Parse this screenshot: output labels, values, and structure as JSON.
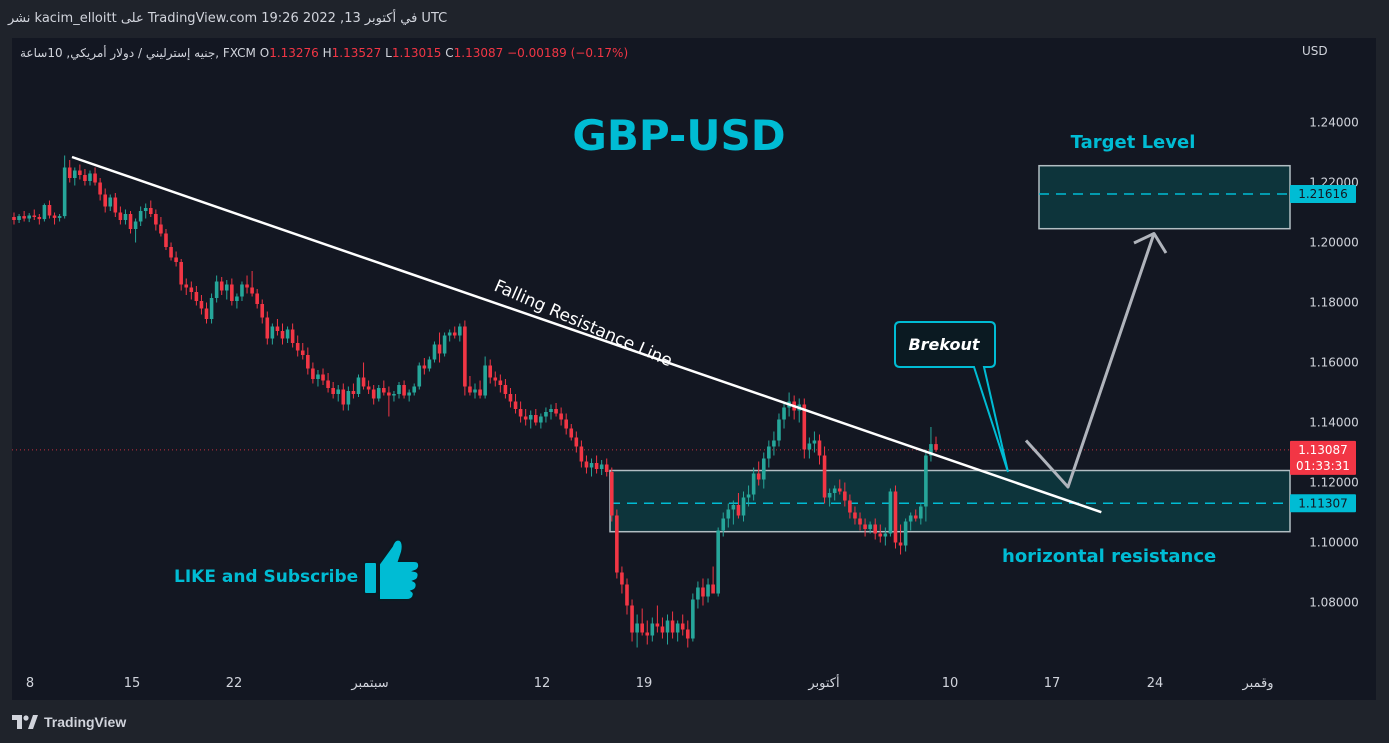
{
  "header": {
    "publish_text": "نشر kacim_elloitt على TradingView.com 19:26 2022 ,13 في أكتوبر UTC"
  },
  "legend": {
    "symbol": "جنيه إسترليني / دولار أمريكي, 10ساعة, FXCM",
    "open_label": "O",
    "open": "1.13276",
    "high_label": "H",
    "high": "1.13527",
    "low_label": "L",
    "low": "1.13015",
    "close_label": "C",
    "close": "1.13087",
    "change": "−0.00189 (−0.17%)"
  },
  "currency_label": "USD",
  "footer": {
    "brand": "TradingView"
  },
  "colors": {
    "bull": "#26a69a",
    "bear": "#f23645",
    "background": "#131722",
    "accent": "#00bcd4",
    "zone_fill": "#0d3a40",
    "zone_stroke": "#b2bec3"
  },
  "chart_data": {
    "type": "candlestick",
    "title": "GBP-USD",
    "y_range": [
      1.06,
      1.26
    ],
    "y_ticks": [
      "1.08000",
      "1.10000",
      "1.12000",
      "1.14000",
      "1.16000",
      "1.18000",
      "1.20000",
      "1.22000",
      "1.24000"
    ],
    "x_ticks": [
      "8",
      "15",
      "22",
      "سبتمبر",
      "12",
      "19",
      "أكتوبر",
      "10",
      "17",
      "24",
      "وقمبر"
    ],
    "price_badges": {
      "target": "1.21616",
      "last": "1.13087",
      "countdown": "01:33:31",
      "support": "1.11307"
    },
    "annotations": {
      "trendline_label": "Falling Resistance Line",
      "breakout_label": "Brekout",
      "target_label": "Target Level",
      "zone_label": "horizontal resistance",
      "cta": "LIKE and Subscribe",
      "cta_icon": "thumbs-up-icon"
    },
    "levels": {
      "target_zone": [
        1.2046,
        1.2256
      ],
      "target_line": 1.21616,
      "support_zone": [
        1.1036,
        1.124
      ],
      "support_line": 1.11307,
      "last_price": 1.13087
    },
    "trendline": {
      "start": [
        0,
        1.2285
      ],
      "end": [
        202,
        1.1101
      ]
    },
    "projection": [
      [
        179,
        1.134
      ],
      [
        188,
        1.1185
      ],
      [
        200,
        1.203
      ]
    ],
    "candles": [
      [
        1.2085,
        1.21,
        1.206,
        1.2075
      ],
      [
        1.2075,
        1.2095,
        1.2065,
        1.2088
      ],
      [
        1.2088,
        1.2105,
        1.207,
        1.208
      ],
      [
        1.208,
        1.2098,
        1.2068,
        1.209
      ],
      [
        1.209,
        1.211,
        1.2075,
        1.2085
      ],
      [
        1.2085,
        1.2095,
        1.206,
        1.2078
      ],
      [
        1.2078,
        1.213,
        1.207,
        1.2125
      ],
      [
        1.2125,
        1.214,
        1.208,
        1.209
      ],
      [
        1.209,
        1.21,
        1.206,
        1.2082
      ],
      [
        1.2082,
        1.2095,
        1.207,
        1.2088
      ],
      [
        1.2088,
        1.229,
        1.208,
        1.225
      ],
      [
        1.225,
        1.2275,
        1.22,
        1.2215
      ],
      [
        1.2215,
        1.225,
        1.219,
        1.224
      ],
      [
        1.224,
        1.226,
        1.221,
        1.2225
      ],
      [
        1.2225,
        1.2245,
        1.219,
        1.2205
      ],
      [
        1.2205,
        1.224,
        1.219,
        1.223
      ],
      [
        1.223,
        1.225,
        1.219,
        1.22
      ],
      [
        1.22,
        1.2215,
        1.214,
        1.216
      ],
      [
        1.216,
        1.218,
        1.21,
        1.212
      ],
      [
        1.212,
        1.216,
        1.2105,
        1.215
      ],
      [
        1.215,
        1.2165,
        1.2085,
        1.21
      ],
      [
        1.21,
        1.212,
        1.206,
        1.2075
      ],
      [
        1.2075,
        1.211,
        1.206,
        1.2095
      ],
      [
        1.2095,
        1.2105,
        1.203,
        1.2045
      ],
      [
        1.2045,
        1.208,
        1.2,
        1.207
      ],
      [
        1.207,
        1.212,
        1.2055,
        1.2105
      ],
      [
        1.2105,
        1.213,
        1.208,
        1.2115
      ],
      [
        1.2115,
        1.214,
        1.2085,
        1.2095
      ],
      [
        1.2095,
        1.211,
        1.204,
        1.206
      ],
      [
        1.206,
        1.2085,
        1.202,
        1.203
      ],
      [
        1.203,
        1.2045,
        1.1975,
        1.1985
      ],
      [
        1.1985,
        1.2,
        1.194,
        1.195
      ],
      [
        1.195,
        1.197,
        1.192,
        1.1935
      ],
      [
        1.1935,
        1.1945,
        1.184,
        1.186
      ],
      [
        1.186,
        1.188,
        1.1825,
        1.185
      ],
      [
        1.185,
        1.187,
        1.181,
        1.1835
      ],
      [
        1.1835,
        1.1855,
        1.179,
        1.1805
      ],
      [
        1.1805,
        1.1825,
        1.176,
        1.178
      ],
      [
        1.178,
        1.18,
        1.173,
        1.1745
      ],
      [
        1.1745,
        1.183,
        1.173,
        1.1815
      ],
      [
        1.1815,
        1.189,
        1.18,
        1.187
      ],
      [
        1.187,
        1.1885,
        1.1825,
        1.184
      ],
      [
        1.184,
        1.1875,
        1.181,
        1.186
      ],
      [
        1.186,
        1.188,
        1.179,
        1.1805
      ],
      [
        1.1805,
        1.183,
        1.178,
        1.182
      ],
      [
        1.182,
        1.187,
        1.1805,
        1.186
      ],
      [
        1.186,
        1.189,
        1.183,
        1.185
      ],
      [
        1.185,
        1.1905,
        1.182,
        1.183
      ],
      [
        1.183,
        1.1845,
        1.178,
        1.1795
      ],
      [
        1.1795,
        1.181,
        1.173,
        1.175
      ],
      [
        1.175,
        1.177,
        1.166,
        1.168
      ],
      [
        1.168,
        1.173,
        1.166,
        1.172
      ],
      [
        1.172,
        1.1745,
        1.169,
        1.1705
      ],
      [
        1.1705,
        1.173,
        1.166,
        1.168
      ],
      [
        1.168,
        1.172,
        1.1665,
        1.171
      ],
      [
        1.171,
        1.173,
        1.165,
        1.1665
      ],
      [
        1.1665,
        1.169,
        1.162,
        1.164
      ],
      [
        1.164,
        1.1665,
        1.161,
        1.1625
      ],
      [
        1.1625,
        1.165,
        1.156,
        1.158
      ],
      [
        1.158,
        1.16,
        1.153,
        1.1545
      ],
      [
        1.1545,
        1.1575,
        1.152,
        1.156
      ],
      [
        1.156,
        1.158,
        1.1525,
        1.154
      ],
      [
        1.154,
        1.1565,
        1.15,
        1.1515
      ],
      [
        1.1515,
        1.1535,
        1.148,
        1.1495
      ],
      [
        1.1495,
        1.1525,
        1.147,
        1.151
      ],
      [
        1.151,
        1.153,
        1.144,
        1.146
      ],
      [
        1.146,
        1.152,
        1.144,
        1.1505
      ],
      [
        1.1505,
        1.153,
        1.148,
        1.1495
      ],
      [
        1.1495,
        1.156,
        1.1485,
        1.155
      ],
      [
        1.155,
        1.16,
        1.151,
        1.152
      ],
      [
        1.152,
        1.154,
        1.1495,
        1.151
      ],
      [
        1.151,
        1.1525,
        1.146,
        1.148
      ],
      [
        1.148,
        1.1525,
        1.147,
        1.1515
      ],
      [
        1.1515,
        1.154,
        1.149,
        1.15
      ],
      [
        1.15,
        1.152,
        1.142,
        1.149
      ],
      [
        1.149,
        1.1505,
        1.147,
        1.1495
      ],
      [
        1.1495,
        1.1535,
        1.148,
        1.1525
      ],
      [
        1.1525,
        1.154,
        1.148,
        1.149
      ],
      [
        1.149,
        1.151,
        1.147,
        1.15
      ],
      [
        1.15,
        1.153,
        1.149,
        1.152
      ],
      [
        1.152,
        1.16,
        1.151,
        1.159
      ],
      [
        1.159,
        1.1615,
        1.156,
        1.158
      ],
      [
        1.158,
        1.162,
        1.157,
        1.161
      ],
      [
        1.161,
        1.167,
        1.16,
        1.166
      ],
      [
        1.166,
        1.17,
        1.16,
        1.163
      ],
      [
        1.163,
        1.17,
        1.162,
        1.169
      ],
      [
        1.169,
        1.171,
        1.167,
        1.17
      ],
      [
        1.17,
        1.172,
        1.168,
        1.169
      ],
      [
        1.169,
        1.173,
        1.167,
        1.172
      ],
      [
        1.172,
        1.174,
        1.149,
        1.152
      ],
      [
        1.152,
        1.1555,
        1.149,
        1.15
      ],
      [
        1.15,
        1.153,
        1.148,
        1.151
      ],
      [
        1.151,
        1.154,
        1.148,
        1.149
      ],
      [
        1.149,
        1.162,
        1.148,
        1.159
      ],
      [
        1.159,
        1.161,
        1.153,
        1.155
      ],
      [
        1.155,
        1.157,
        1.152,
        1.154
      ],
      [
        1.154,
        1.156,
        1.15,
        1.1525
      ],
      [
        1.1525,
        1.1545,
        1.148,
        1.1495
      ],
      [
        1.1495,
        1.1515,
        1.145,
        1.147
      ],
      [
        1.147,
        1.1495,
        1.143,
        1.1445
      ],
      [
        1.1445,
        1.147,
        1.14,
        1.142
      ],
      [
        1.142,
        1.1445,
        1.139,
        1.141
      ],
      [
        1.141,
        1.144,
        1.138,
        1.1425
      ],
      [
        1.1425,
        1.1445,
        1.139,
        1.14
      ],
      [
        1.14,
        1.143,
        1.138,
        1.142
      ],
      [
        1.142,
        1.145,
        1.14,
        1.1435
      ],
      [
        1.1435,
        1.146,
        1.141,
        1.1445
      ],
      [
        1.1445,
        1.1465,
        1.142,
        1.143
      ],
      [
        1.143,
        1.145,
        1.139,
        1.141
      ],
      [
        1.141,
        1.143,
        1.136,
        1.138
      ],
      [
        1.138,
        1.1395,
        1.134,
        1.135
      ],
      [
        1.135,
        1.137,
        1.13,
        1.132
      ],
      [
        1.132,
        1.134,
        1.125,
        1.127
      ],
      [
        1.127,
        1.129,
        1.123,
        1.125
      ],
      [
        1.125,
        1.128,
        1.122,
        1.1265
      ],
      [
        1.1265,
        1.129,
        1.123,
        1.1245
      ],
      [
        1.1245,
        1.1275,
        1.1225,
        1.126
      ],
      [
        1.126,
        1.128,
        1.122,
        1.1235
      ],
      [
        1.1235,
        1.125,
        1.107,
        1.109
      ],
      [
        1.109,
        1.111,
        1.088,
        1.09
      ],
      [
        1.09,
        1.092,
        1.083,
        1.086
      ],
      [
        1.086,
        1.088,
        1.076,
        1.079
      ],
      [
        1.079,
        1.081,
        1.067,
        1.07
      ],
      [
        1.07,
        1.076,
        1.065,
        1.073
      ],
      [
        1.073,
        1.078,
        1.069,
        1.07
      ],
      [
        1.07,
        1.074,
        1.066,
        1.069
      ],
      [
        1.069,
        1.075,
        1.067,
        1.073
      ],
      [
        1.073,
        1.079,
        1.07,
        1.072
      ],
      [
        1.072,
        1.075,
        1.068,
        1.07
      ],
      [
        1.07,
        1.076,
        1.066,
        1.074
      ],
      [
        1.074,
        1.077,
        1.068,
        1.07
      ],
      [
        1.07,
        1.074,
        1.067,
        1.073
      ],
      [
        1.073,
        1.076,
        1.069,
        1.071
      ],
      [
        1.071,
        1.074,
        1.065,
        1.068
      ],
      [
        1.068,
        1.083,
        1.067,
        1.081
      ],
      [
        1.081,
        1.087,
        1.078,
        1.085
      ],
      [
        1.085,
        1.088,
        1.079,
        1.082
      ],
      [
        1.082,
        1.088,
        1.08,
        1.086
      ],
      [
        1.086,
        1.092,
        1.084,
        1.083
      ],
      [
        1.083,
        1.105,
        1.082,
        1.104
      ],
      [
        1.104,
        1.11,
        1.102,
        1.108
      ],
      [
        1.108,
        1.113,
        1.105,
        1.111
      ],
      [
        1.111,
        1.114,
        1.106,
        1.1125
      ],
      [
        1.1125,
        1.1165,
        1.108,
        1.109
      ],
      [
        1.109,
        1.117,
        1.107,
        1.115
      ],
      [
        1.115,
        1.119,
        1.112,
        1.116
      ],
      [
        1.116,
        1.125,
        1.114,
        1.123
      ],
      [
        1.123,
        1.127,
        1.119,
        1.121
      ],
      [
        1.121,
        1.13,
        1.118,
        1.128
      ],
      [
        1.128,
        1.134,
        1.125,
        1.132
      ],
      [
        1.132,
        1.137,
        1.129,
        1.134
      ],
      [
        1.134,
        1.143,
        1.132,
        1.141
      ],
      [
        1.141,
        1.147,
        1.138,
        1.145
      ],
      [
        1.145,
        1.15,
        1.142,
        1.147
      ],
      [
        1.147,
        1.149,
        1.141,
        1.144
      ],
      [
        1.144,
        1.148,
        1.14,
        1.146
      ],
      [
        1.146,
        1.148,
        1.128,
        1.131
      ],
      [
        1.131,
        1.135,
        1.128,
        1.133
      ],
      [
        1.133,
        1.137,
        1.13,
        1.134
      ],
      [
        1.134,
        1.136,
        1.126,
        1.129
      ],
      [
        1.129,
        1.132,
        1.113,
        1.115
      ],
      [
        1.115,
        1.118,
        1.112,
        1.1165
      ],
      [
        1.1165,
        1.119,
        1.114,
        1.118
      ],
      [
        1.118,
        1.121,
        1.116,
        1.117
      ],
      [
        1.117,
        1.12,
        1.112,
        1.114
      ],
      [
        1.114,
        1.116,
        1.108,
        1.11
      ],
      [
        1.11,
        1.112,
        1.106,
        1.108
      ],
      [
        1.108,
        1.11,
        1.104,
        1.106
      ],
      [
        1.106,
        1.108,
        1.102,
        1.1045
      ],
      [
        1.1045,
        1.107,
        1.103,
        1.106
      ],
      [
        1.106,
        1.108,
        1.101,
        1.103
      ],
      [
        1.103,
        1.106,
        1.1,
        1.102
      ],
      [
        1.102,
        1.105,
        1.099,
        1.103
      ],
      [
        1.103,
        1.118,
        1.102,
        1.117
      ],
      [
        1.117,
        1.119,
        1.098,
        1.1
      ],
      [
        1.1,
        1.106,
        1.096,
        1.099
      ],
      [
        1.099,
        1.108,
        1.097,
        1.107
      ],
      [
        1.107,
        1.11,
        1.104,
        1.109
      ],
      [
        1.109,
        1.111,
        1.107,
        1.108
      ],
      [
        1.108,
        1.113,
        1.106,
        1.112
      ],
      [
        1.112,
        1.131,
        1.107,
        1.129
      ],
      [
        1.129,
        1.1385,
        1.127,
        1.1328
      ],
      [
        1.1328,
        1.1353,
        1.1302,
        1.1309
      ]
    ]
  }
}
